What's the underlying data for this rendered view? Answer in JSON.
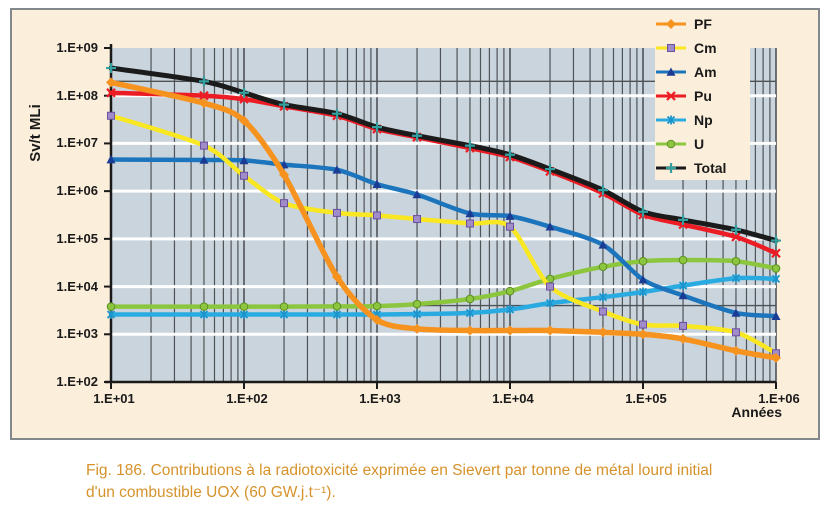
{
  "figure": {
    "y_axis_title": "Sv/t MLi",
    "x_axis_title": "Années",
    "caption_line1": "Fig. 186. Contributions à la radiotoxicité exprimée en Sievert par tonne de métal lourd initial",
    "caption_line2": "d'un combustible UOX (60 GW.j.t⁻¹).",
    "caption_color": "#D6922B",
    "panel_background": "#FBEEDB",
    "panel_border_color": "#83888D"
  },
  "chart_data": {
    "type": "line",
    "x_scale": "log",
    "y_scale": "log",
    "xlabel": "Années",
    "ylabel": "Sv/t MLi",
    "xlim": [
      10,
      1000000
    ],
    "ylim": [
      100,
      1000000000
    ],
    "x_tick_labels": [
      "1.E+01",
      "1.E+02",
      "1.E+03",
      "1.E+04",
      "1.E+05",
      "1.E+06"
    ],
    "y_tick_labels": [
      "1.E+09",
      "1.E+08",
      "1.E+07",
      "1.E+06",
      "1.E+05",
      "1.E+04",
      "1.E+03",
      "1.E+02"
    ],
    "plot_background": "#CAD4DC",
    "major_gridline_color": "#FFFFFF",
    "minor_gridline_color": "#4E5357",
    "legend_position": "top-right",
    "x": [
      10,
      50,
      100,
      200,
      500,
      1000,
      2000,
      5000,
      10000,
      20000,
      50000,
      100000,
      200000,
      500000,
      1000000
    ],
    "series": [
      {
        "name": "PF",
        "color": "#F6921E",
        "marker": "diamond",
        "marker_color": "#F6921E",
        "values": [
          190000000,
          70000000,
          30000000,
          2200000,
          16000,
          2000,
          1300,
          1200,
          1200,
          1200,
          1100,
          1000,
          800,
          450,
          320
        ]
      },
      {
        "name": "Cm",
        "color": "#F9E821",
        "marker": "square",
        "marker_color": "#A08CC8",
        "values": [
          38000000,
          9000000,
          2100000,
          560000,
          350000,
          310000,
          260000,
          210000,
          180000,
          10000,
          3000,
          1600,
          1500,
          1100,
          400
        ]
      },
      {
        "name": "Am",
        "color": "#1C75BC",
        "marker": "triangle",
        "marker_color": "#1B3C94",
        "values": [
          4600000,
          4500000,
          4400000,
          3600000,
          2800000,
          1400000,
          850000,
          340000,
          300000,
          180000,
          75000,
          14000,
          6500,
          2800,
          2400
        ]
      },
      {
        "name": "Pu",
        "color": "#EC1C24",
        "marker": "x",
        "marker_color": "#EC1C24",
        "values": [
          115000000,
          100000000,
          85000000,
          60000000,
          38000000,
          20000000,
          13500000,
          8000000,
          5200000,
          2600000,
          900000,
          320000,
          200000,
          110000,
          50000
        ]
      },
      {
        "name": "Np",
        "color": "#29ABE2",
        "marker": "star",
        "marker_color": "#1D95CC",
        "values": [
          2600,
          2600,
          2600,
          2600,
          2600,
          2600,
          2650,
          2800,
          3300,
          4500,
          6000,
          7700,
          10500,
          15000,
          14500
        ]
      },
      {
        "name": "U",
        "color": "#8CC63F",
        "marker": "circle",
        "marker_color": "#8CC63F",
        "values": [
          3800,
          3800,
          3800,
          3800,
          3850,
          3900,
          4300,
          5500,
          8000,
          14500,
          26000,
          34000,
          36000,
          34000,
          24000
        ]
      },
      {
        "name": "Total",
        "color": "#1B1B1B",
        "marker": "plus",
        "marker_color": "#35A0A0",
        "values": [
          380000000,
          200000000,
          115000000,
          65000000,
          42000000,
          22000000,
          14500000,
          9000000,
          5800000,
          2900000,
          1050000,
          370000,
          250000,
          155000,
          92000
        ]
      }
    ]
  }
}
